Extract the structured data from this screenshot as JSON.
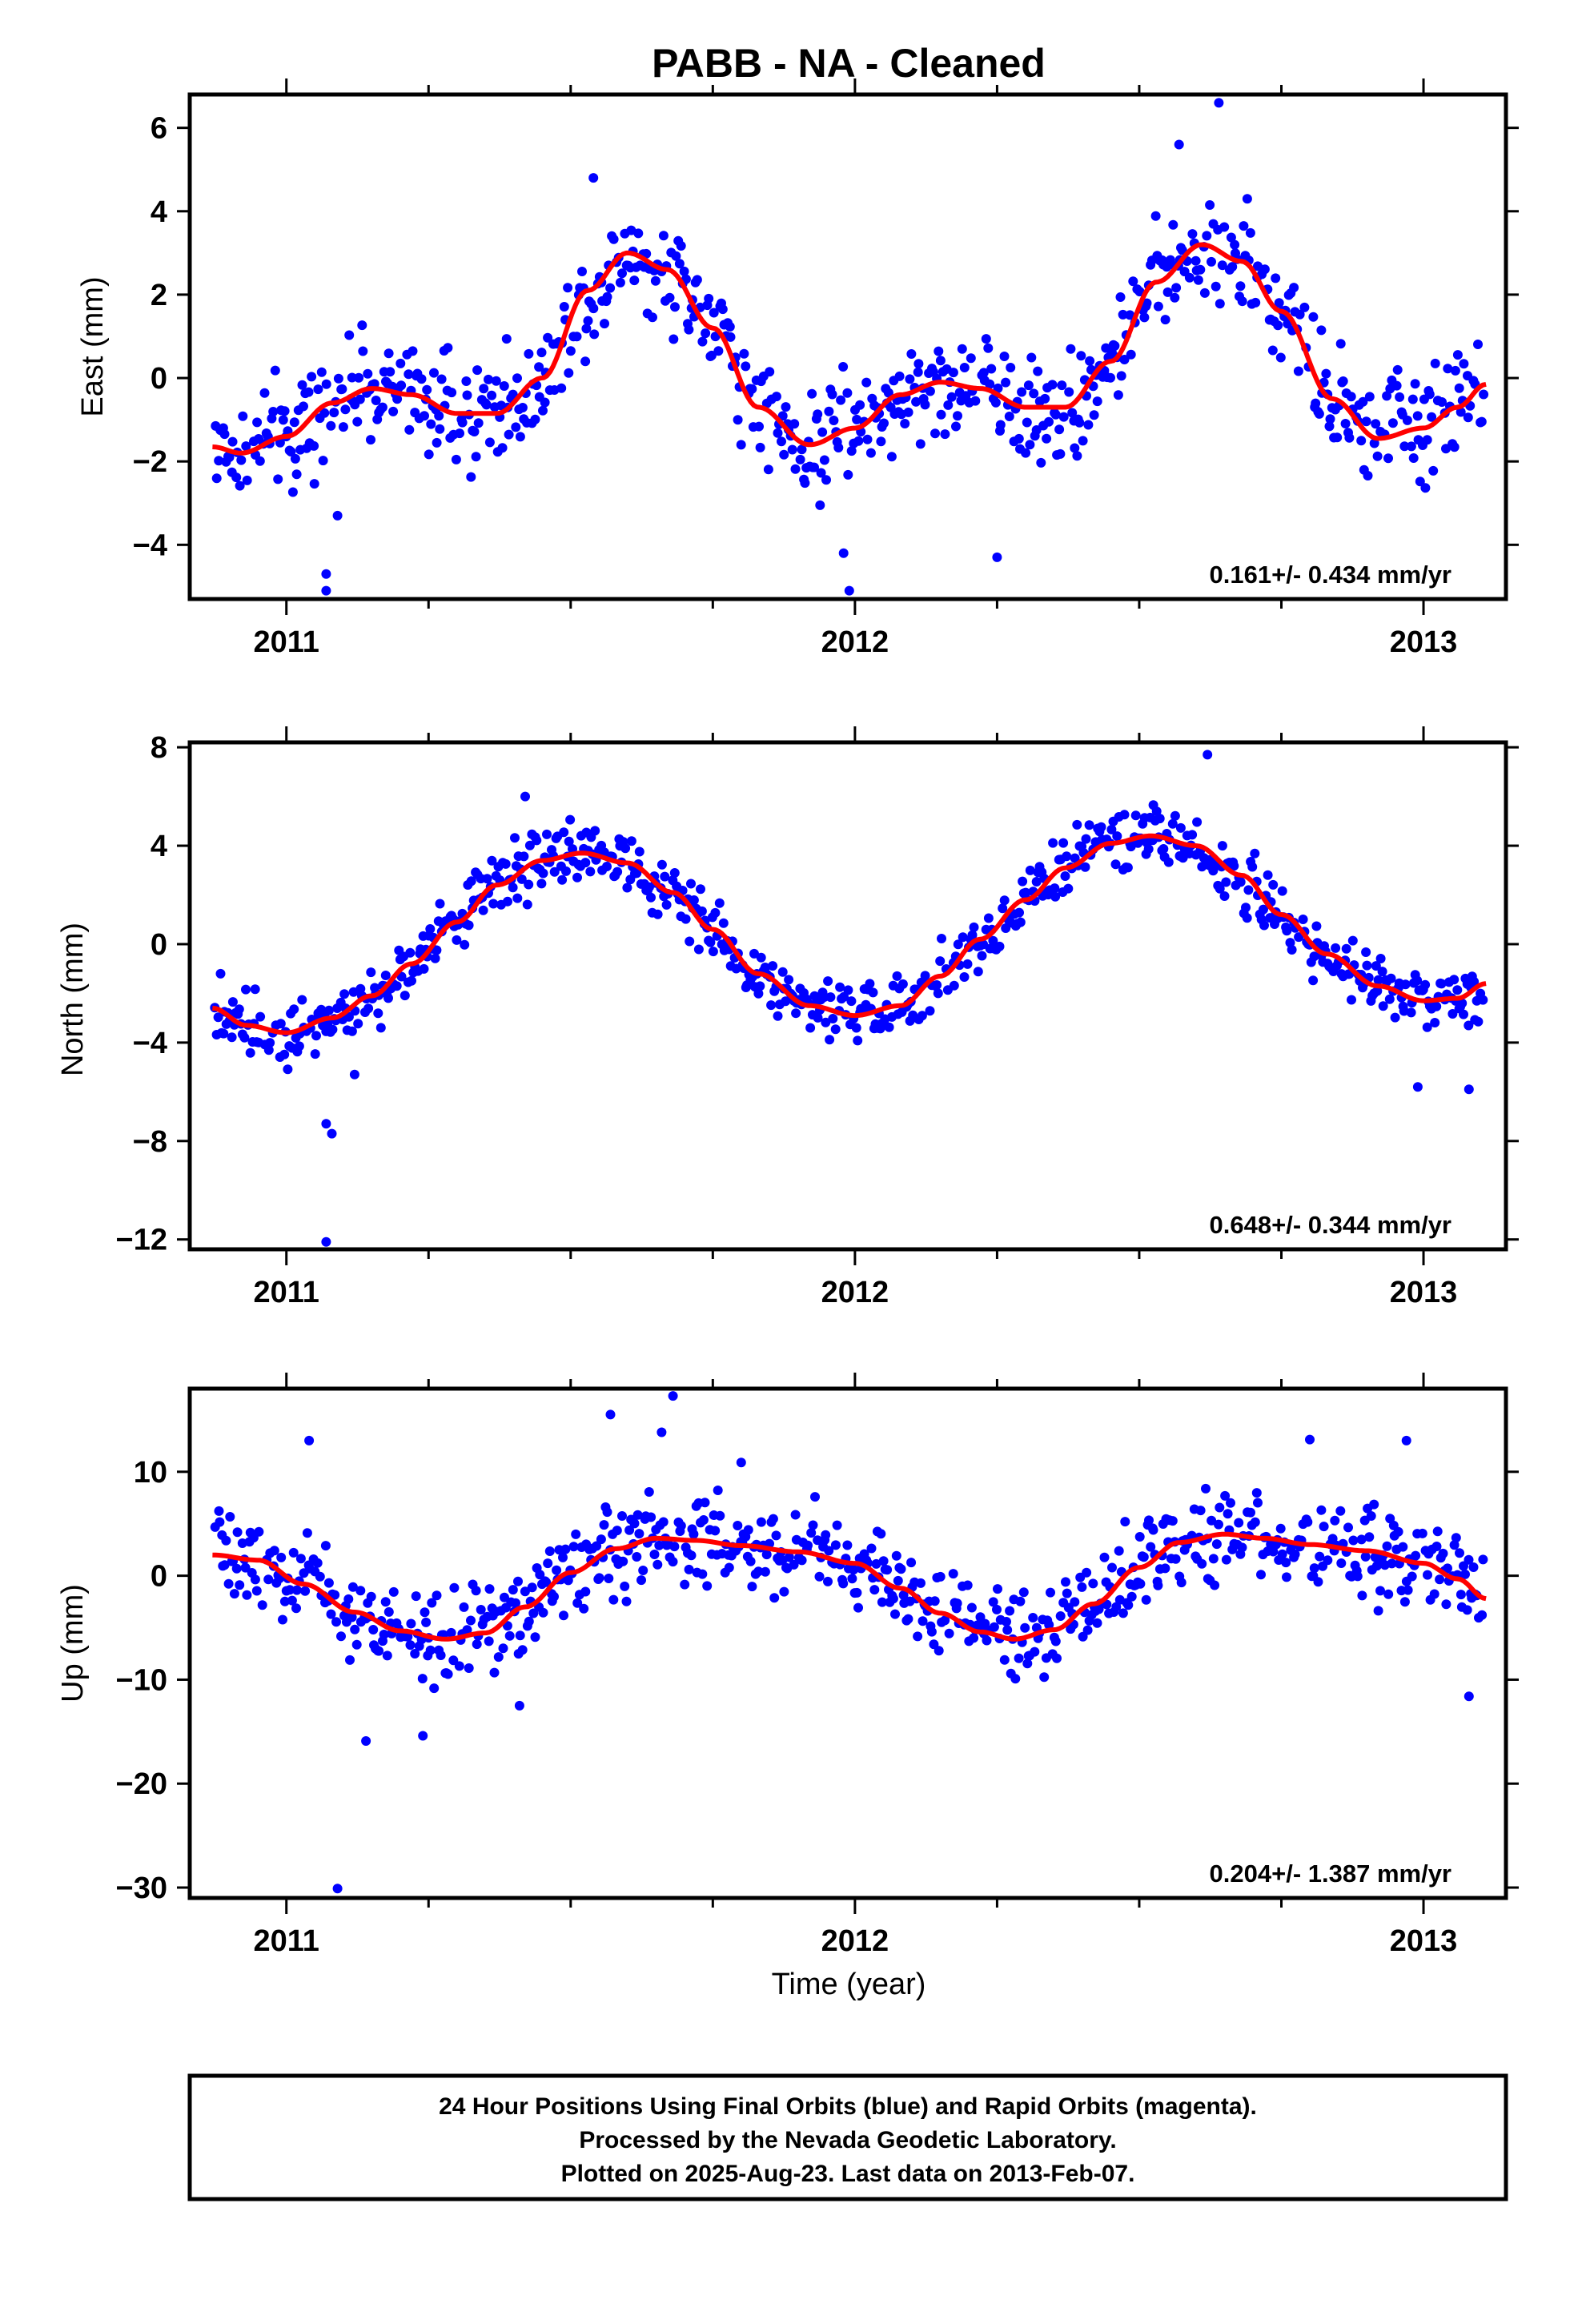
{
  "title": "PABB  - NA - Cleaned",
  "footer": [
    "24 Hour Positions Using Final Orbits (blue) and Rapid Orbits (magenta).",
    "Processed by the Nevada Geodetic Laboratory.",
    "Plotted on 2025-Aug-23. Last data on 2013-Feb-07."
  ],
  "colors": {
    "points": "#0000ff",
    "fit": "#ff0000",
    "frame": "#000000"
  },
  "chart_data": [
    {
      "type": "scatter",
      "ylabel": "East (mm)",
      "xlabel": "",
      "xlim": [
        2010.83,
        2013.145
      ],
      "ylim": [
        -5.3,
        6.8
      ],
      "xticks": [
        2011,
        2012,
        2013
      ],
      "xtick_labels": [
        "2011",
        "2012",
        "2013"
      ],
      "yticks": [
        -4,
        -2,
        0,
        2,
        4,
        6
      ],
      "ytick_labels": [
        "−4",
        "−2",
        "0",
        "2",
        "4",
        "6"
      ],
      "rate_label": "0.161+/- 0.434 mm/yr",
      "fit_keypoints": [
        [
          2010.87,
          -1.65
        ],
        [
          2010.92,
          -1.8
        ],
        [
          2011.0,
          -1.4
        ],
        [
          2011.08,
          -0.6
        ],
        [
          2011.15,
          -0.25
        ],
        [
          2011.22,
          -0.4
        ],
        [
          2011.3,
          -0.85
        ],
        [
          2011.37,
          -0.85
        ],
        [
          2011.45,
          0.0
        ],
        [
          2011.53,
          2.1
        ],
        [
          2011.6,
          3.0
        ],
        [
          2011.67,
          2.6
        ],
        [
          2011.75,
          1.2
        ],
        [
          2011.83,
          -0.7
        ],
        [
          2011.92,
          -1.6
        ],
        [
          2012.0,
          -1.2
        ],
        [
          2012.08,
          -0.4
        ],
        [
          2012.15,
          -0.1
        ],
        [
          2012.22,
          -0.25
        ],
        [
          2012.3,
          -0.7
        ],
        [
          2012.37,
          -0.7
        ],
        [
          2012.45,
          0.4
        ],
        [
          2012.53,
          2.3
        ],
        [
          2012.61,
          3.2
        ],
        [
          2012.68,
          2.8
        ],
        [
          2012.75,
          1.6
        ],
        [
          2012.84,
          -0.5
        ],
        [
          2012.92,
          -1.45
        ],
        [
          2013.0,
          -1.2
        ],
        [
          2013.06,
          -0.7
        ],
        [
          2013.11,
          -0.15
        ]
      ],
      "noise": 1.1,
      "outliers": [
        [
          2011.07,
          -4.7
        ],
        [
          2011.07,
          -5.1
        ],
        [
          2011.09,
          -3.3
        ],
        [
          2011.98,
          -4.2
        ],
        [
          2011.99,
          -5.1
        ],
        [
          2012.25,
          -4.3
        ],
        [
          2012.64,
          6.6
        ],
        [
          2012.57,
          5.6
        ],
        [
          2011.54,
          4.8
        ],
        [
          2012.69,
          4.3
        ]
      ]
    },
    {
      "type": "scatter",
      "ylabel": "North (mm)",
      "xlabel": "",
      "xlim": [
        2010.83,
        2013.145
      ],
      "ylim": [
        -12.4,
        8.2
      ],
      "xticks": [
        2011,
        2012,
        2013
      ],
      "xtick_labels": [
        "2011",
        "2012",
        "2013"
      ],
      "yticks": [
        -12,
        -8,
        -4,
        0,
        4,
        8
      ],
      "ytick_labels": [
        "−12",
        "−8",
        "−4",
        "0",
        "4",
        "8"
      ],
      "rate_label": "0.648+/- 0.344 mm/yr",
      "fit_keypoints": [
        [
          2010.87,
          -2.6
        ],
        [
          2010.93,
          -3.3
        ],
        [
          2011.0,
          -3.6
        ],
        [
          2011.08,
          -3.0
        ],
        [
          2011.15,
          -2.1
        ],
        [
          2011.22,
          -0.8
        ],
        [
          2011.3,
          0.9
        ],
        [
          2011.37,
          2.4
        ],
        [
          2011.45,
          3.4
        ],
        [
          2011.52,
          3.7
        ],
        [
          2011.6,
          3.3
        ],
        [
          2011.68,
          2.1
        ],
        [
          2011.75,
          0.6
        ],
        [
          2011.83,
          -1.2
        ],
        [
          2011.92,
          -2.5
        ],
        [
          2012.0,
          -2.9
        ],
        [
          2012.08,
          -2.5
        ],
        [
          2012.15,
          -1.3
        ],
        [
          2012.22,
          0.2
        ],
        [
          2012.3,
          1.8
        ],
        [
          2012.37,
          3.1
        ],
        [
          2012.45,
          4.1
        ],
        [
          2012.52,
          4.4
        ],
        [
          2012.6,
          4.0
        ],
        [
          2012.68,
          2.8
        ],
        [
          2012.75,
          1.2
        ],
        [
          2012.83,
          -0.4
        ],
        [
          2012.92,
          -1.7
        ],
        [
          2013.0,
          -2.3
        ],
        [
          2013.06,
          -2.2
        ],
        [
          2013.11,
          -1.6
        ]
      ],
      "noise": 1.1,
      "outliers": [
        [
          2011.07,
          -12.1
        ],
        [
          2011.07,
          -7.3
        ],
        [
          2011.08,
          -7.7
        ],
        [
          2011.12,
          -5.3
        ],
        [
          2012.62,
          7.7
        ],
        [
          2011.42,
          6.0
        ],
        [
          2012.99,
          -5.8
        ],
        [
          2013.08,
          -5.9
        ]
      ]
    },
    {
      "type": "scatter",
      "ylabel": "Up (mm)",
      "xlabel": "Time (year)",
      "xlim": [
        2010.83,
        2013.145
      ],
      "ylim": [
        -31.0,
        18.0
      ],
      "xticks": [
        2011,
        2012,
        2013
      ],
      "xtick_labels": [
        "2011",
        "2012",
        "2013"
      ],
      "yticks": [
        -30,
        -20,
        -10,
        0,
        10
      ],
      "ytick_labels": [
        "−30",
        "−20",
        "−10",
        "0",
        "10"
      ],
      "rate_label": "0.204+/- 1.387 mm/yr",
      "fit_keypoints": [
        [
          2010.87,
          2.0
        ],
        [
          2010.95,
          1.5
        ],
        [
          2011.03,
          -0.8
        ],
        [
          2011.12,
          -3.5
        ],
        [
          2011.2,
          -5.3
        ],
        [
          2011.28,
          -6.1
        ],
        [
          2011.35,
          -5.5
        ],
        [
          2011.42,
          -3.0
        ],
        [
          2011.5,
          0.3
        ],
        [
          2011.58,
          2.6
        ],
        [
          2011.65,
          3.6
        ],
        [
          2011.72,
          3.4
        ],
        [
          2011.8,
          2.9
        ],
        [
          2011.9,
          2.3
        ],
        [
          2012.0,
          1.2
        ],
        [
          2012.08,
          -1.2
        ],
        [
          2012.15,
          -3.6
        ],
        [
          2012.22,
          -5.4
        ],
        [
          2012.28,
          -6.1
        ],
        [
          2012.35,
          -5.2
        ],
        [
          2012.42,
          -2.7
        ],
        [
          2012.5,
          0.8
        ],
        [
          2012.57,
          3.2
        ],
        [
          2012.65,
          4.0
        ],
        [
          2012.72,
          3.6
        ],
        [
          2012.8,
          3.0
        ],
        [
          2012.9,
          2.4
        ],
        [
          2013.0,
          1.2
        ],
        [
          2013.06,
          -0.3
        ],
        [
          2013.11,
          -2.2
        ]
      ],
      "noise": 3.6,
      "outliers": [
        [
          2011.09,
          -30.1
        ],
        [
          2011.14,
          -15.9
        ],
        [
          2011.24,
          -15.4
        ],
        [
          2011.57,
          15.5
        ],
        [
          2011.68,
          17.3
        ],
        [
          2011.66,
          13.8
        ],
        [
          2011.04,
          13.0
        ],
        [
          2011.8,
          10.9
        ],
        [
          2012.8,
          13.1
        ],
        [
          2012.97,
          13.0
        ],
        [
          2013.08,
          -11.6
        ],
        [
          2011.41,
          -12.5
        ]
      ]
    }
  ]
}
